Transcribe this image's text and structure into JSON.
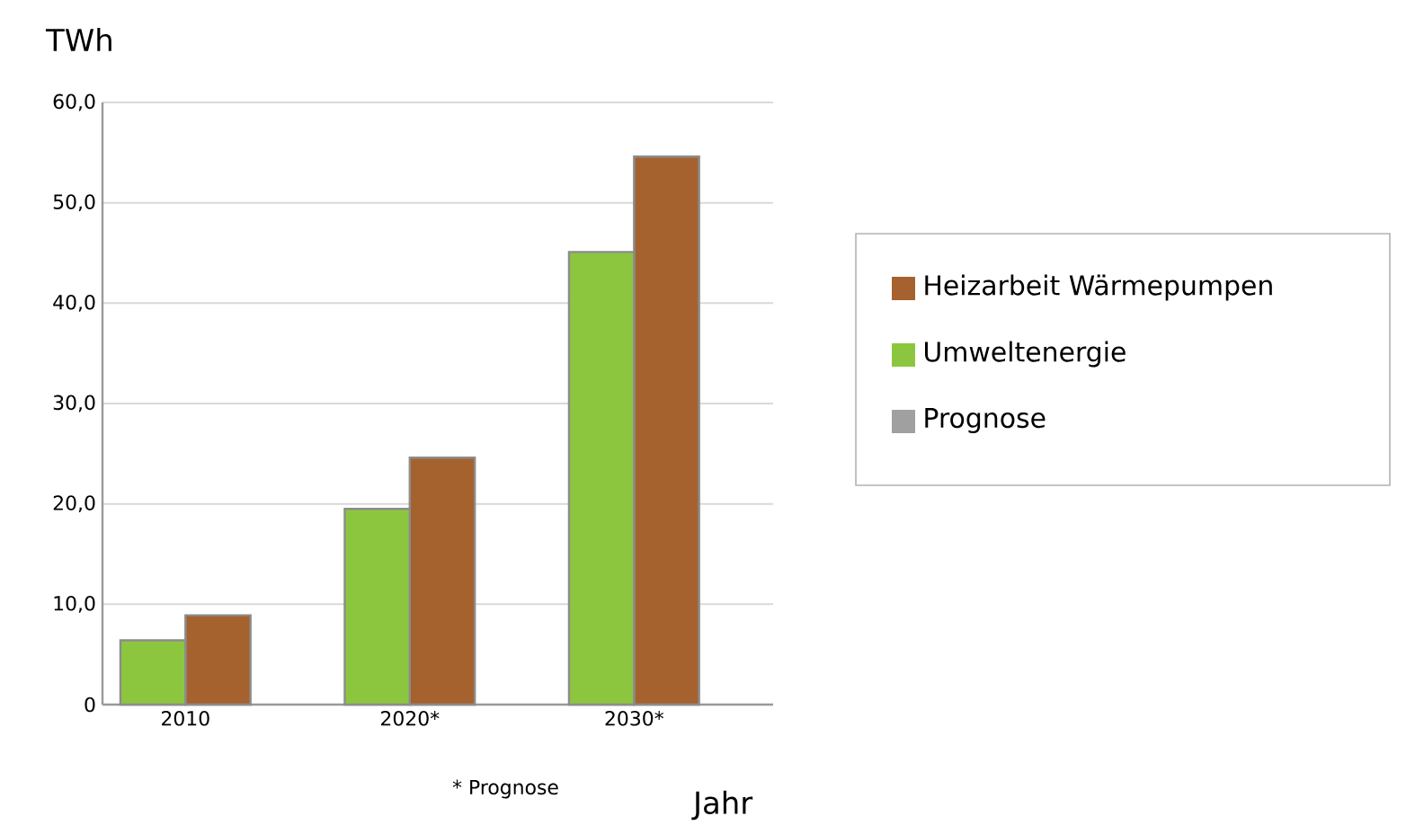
{
  "chart_data": {
    "type": "bar",
    "ylabel": "TWh",
    "xlabel": "Jahr",
    "categories": [
      "2010",
      "2020*",
      "2030*"
    ],
    "series": [
      {
        "name": "Heizarbeit Wärmepumpen",
        "color": "#a5622f",
        "values": [
          8.9,
          24.6,
          54.6
        ]
      },
      {
        "name": "Umweltenergie",
        "color": "#8cc63f",
        "values": [
          6.4,
          19.5,
          45.1
        ]
      },
      {
        "name": "Prognose",
        "color": "#a0a0a0",
        "values": [
          null,
          null,
          null
        ]
      }
    ],
    "ylim": [
      0,
      60
    ],
    "yticks": [
      0,
      {
        "value": 10,
        "label": "10,0"
      },
      {
        "value": 20,
        "label": "20,0"
      },
      {
        "value": 30,
        "label": "30,0"
      },
      {
        "value": 40,
        "label": "40,0"
      },
      {
        "value": 50,
        "label": "50,0"
      },
      {
        "value": 60,
        "label": "60,0"
      }
    ],
    "grid": "y",
    "legend": "right",
    "annotations": [
      "* Prognose"
    ]
  }
}
